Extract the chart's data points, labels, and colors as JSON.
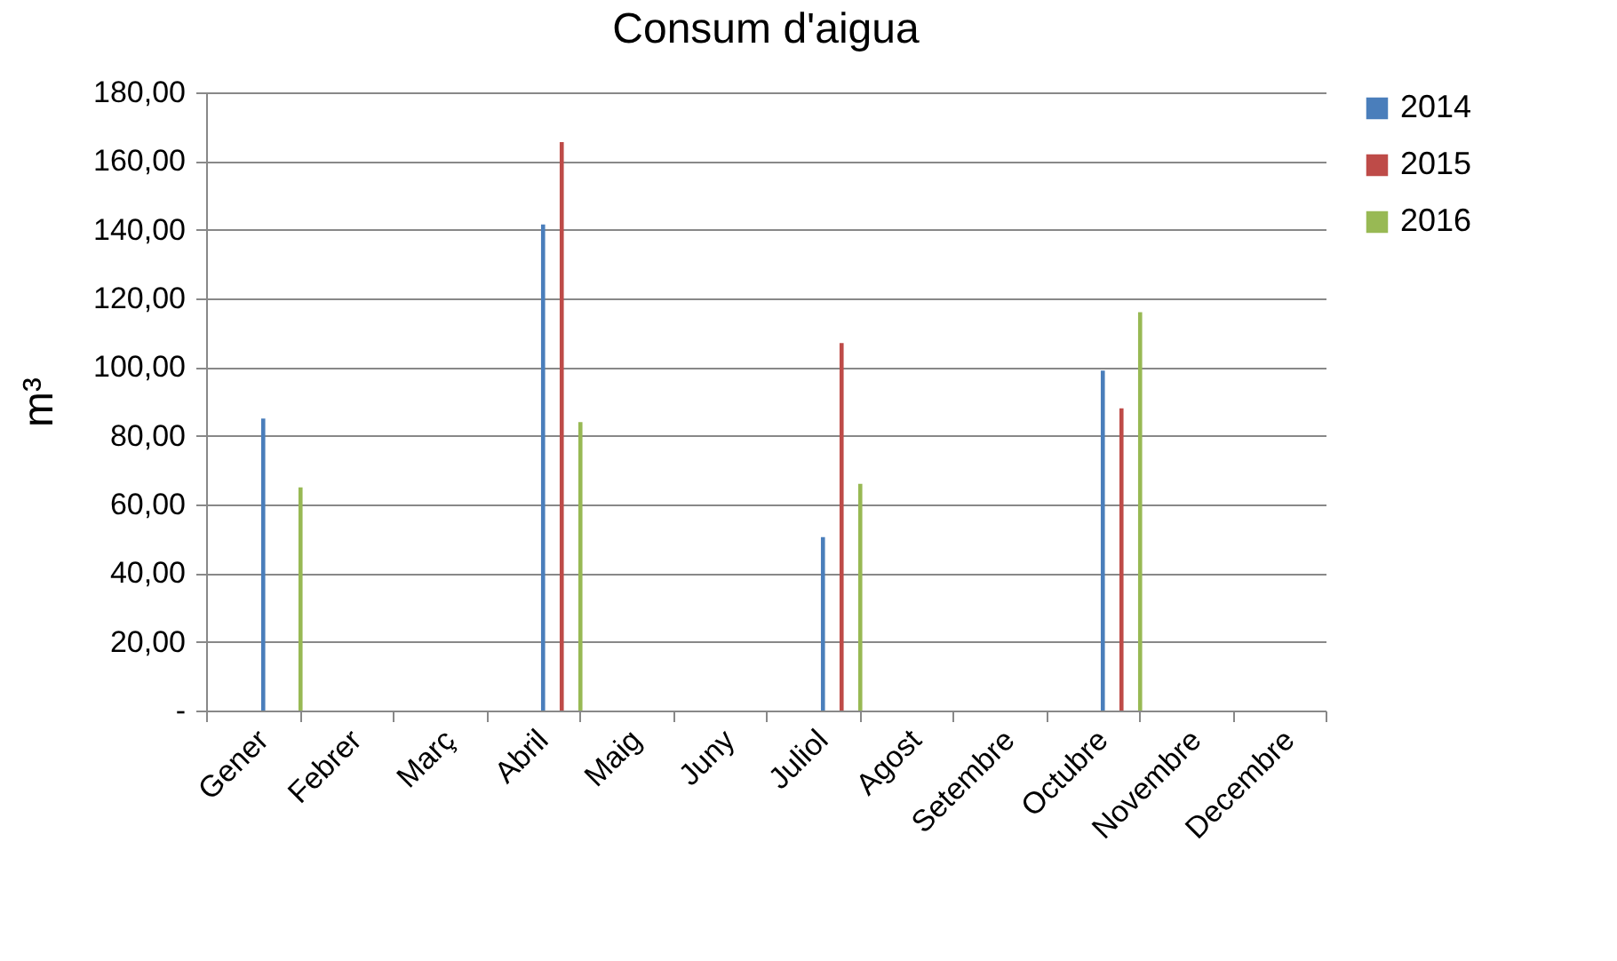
{
  "chart_data": {
    "type": "bar",
    "title": "Consum d'aigua",
    "ylabel": "m³",
    "categories": [
      "Gener",
      "Febrer",
      "Març",
      "Abril",
      "Maig",
      "Juny",
      "Juliol",
      "Agost",
      "Setembre",
      "Octubre",
      "Novembre",
      "Decembre"
    ],
    "series": [
      {
        "name": "2014",
        "color": "#4a7ebb",
        "values": [
          85,
          null,
          null,
          141.5,
          null,
          null,
          50.5,
          null,
          null,
          99,
          null,
          null
        ]
      },
      {
        "name": "2015",
        "color": "#be4b48",
        "values": [
          null,
          null,
          null,
          165.5,
          null,
          null,
          107,
          null,
          null,
          88,
          null,
          null
        ]
      },
      {
        "name": "2016",
        "color": "#98b954",
        "values": [
          65,
          null,
          null,
          84,
          null,
          null,
          66,
          null,
          null,
          116,
          null,
          null
        ]
      }
    ],
    "ylim": [
      0,
      180
    ],
    "yticks": [
      {
        "value": 0,
        "label": "-"
      },
      {
        "value": 20,
        "label": "20,00"
      },
      {
        "value": 40,
        "label": "40,00"
      },
      {
        "value": 60,
        "label": "60,00"
      },
      {
        "value": 80,
        "label": "80,00"
      },
      {
        "value": 100,
        "label": "100,00"
      },
      {
        "value": 120,
        "label": "120,00"
      },
      {
        "value": 140,
        "label": "140,00"
      },
      {
        "value": 160,
        "label": "160,00"
      },
      {
        "value": 180,
        "label": "180,00"
      }
    ],
    "grid": "y",
    "legend": "right"
  }
}
